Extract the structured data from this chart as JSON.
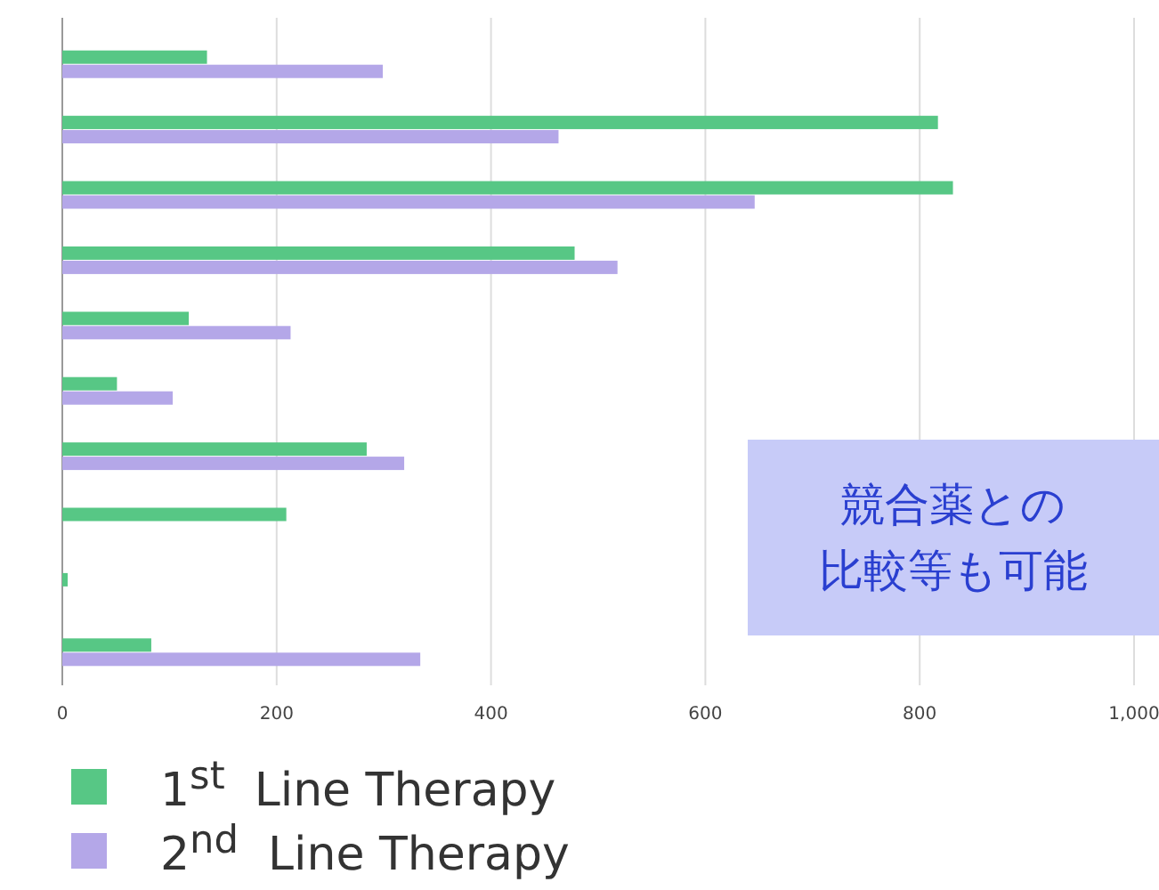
{
  "chart_data": {
    "type": "bar",
    "orientation": "horizontal",
    "categories": [
      null,
      null,
      null,
      null,
      null,
      null,
      null,
      null,
      null,
      null
    ],
    "series": [
      {
        "name": "1$^{st}$  Line Therapy",
        "color": "#57c785",
        "values": [
          135,
          817,
          831,
          478,
          118,
          51,
          284,
          209,
          5,
          83
        ]
      },
      {
        "name": "2$^{nd}$  Line Therapy",
        "color": "#b4a7e8",
        "values": [
          299,
          463,
          646,
          518,
          213,
          103,
          319,
          null,
          null,
          334
        ]
      }
    ],
    "xlim": [
      0,
      1000
    ],
    "xticks": [
      0,
      200,
      400,
      600,
      800,
      {
        "value": 1000,
        "label": "1,000"
      }
    ],
    "grid": "x",
    "legend": "bottom left",
    "annotations": [
      "競合薬との",
      "比較等も可能"
    ]
  }
}
